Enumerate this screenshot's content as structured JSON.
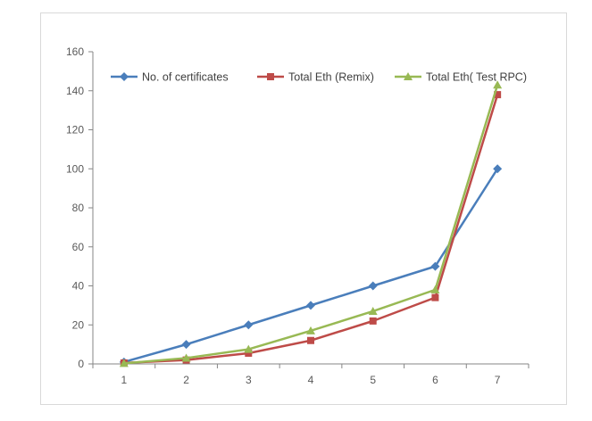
{
  "chart_data": {
    "type": "line",
    "title": "",
    "xlabel": "",
    "ylabel": "",
    "x": [
      1,
      2,
      3,
      4,
      5,
      6,
      7
    ],
    "ylim": [
      0,
      160
    ],
    "yticks": [
      0,
      20,
      40,
      60,
      80,
      100,
      120,
      140,
      160
    ],
    "grid": false,
    "legend_position": "top",
    "series": [
      {
        "name": "No. of certificates",
        "color": "#4a7ebb",
        "marker": "diamond",
        "values": [
          1,
          10,
          20,
          30,
          40,
          50,
          100
        ]
      },
      {
        "name": "Total Eth (Remix)",
        "color": "#be4b48",
        "marker": "square",
        "values": [
          0.5,
          2,
          5.5,
          12,
          22,
          34,
          138
        ]
      },
      {
        "name": "Total Eth( Test RPC)",
        "color": "#98b954",
        "marker": "triangle",
        "values": [
          0.3,
          3,
          7.5,
          17,
          27,
          38,
          143
        ]
      }
    ]
  }
}
